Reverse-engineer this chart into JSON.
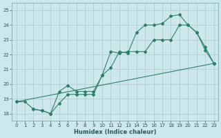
{
  "title": "",
  "xlabel": "Humidex (Indice chaleur)",
  "ylabel": "",
  "bg_color": "#cce8ec",
  "grid_color": "#b0d0d8",
  "line_color": "#2e7d6e",
  "xlim": [
    -0.5,
    23.5
  ],
  "ylim": [
    17.5,
    25.5
  ],
  "xticks": [
    0,
    1,
    2,
    3,
    4,
    5,
    6,
    7,
    8,
    9,
    10,
    11,
    12,
    13,
    14,
    15,
    16,
    17,
    18,
    19,
    20,
    21,
    22,
    23
  ],
  "yticks": [
    18,
    19,
    20,
    21,
    22,
    23,
    24,
    25
  ],
  "series1": {
    "x": [
      0,
      1,
      2,
      3,
      4,
      5,
      6,
      7,
      8,
      9,
      10,
      11,
      12,
      13,
      14,
      15,
      16,
      17,
      18,
      19,
      20,
      21,
      22,
      23
    ],
    "y": [
      18.8,
      18.8,
      18.3,
      18.2,
      18.0,
      18.7,
      19.3,
      19.3,
      19.3,
      19.3,
      20.6,
      21.1,
      22.2,
      22.1,
      23.5,
      24.0,
      24.0,
      24.1,
      24.6,
      24.7,
      24.0,
      23.5,
      22.3,
      21.4
    ]
  },
  "series2": {
    "x": [
      2,
      3,
      4,
      5,
      6,
      7,
      8,
      9,
      10,
      11,
      12,
      13,
      14,
      15,
      16,
      17,
      18,
      19,
      20,
      21,
      22,
      23
    ],
    "y": [
      18.3,
      18.2,
      18.0,
      19.5,
      19.9,
      19.5,
      19.5,
      19.5,
      20.6,
      22.2,
      22.1,
      22.2,
      22.2,
      22.2,
      23.0,
      23.0,
      23.0,
      24.0,
      24.0,
      23.5,
      22.5,
      21.4
    ]
  },
  "series3": {
    "x": [
      0,
      23
    ],
    "y": [
      18.8,
      21.4
    ]
  }
}
